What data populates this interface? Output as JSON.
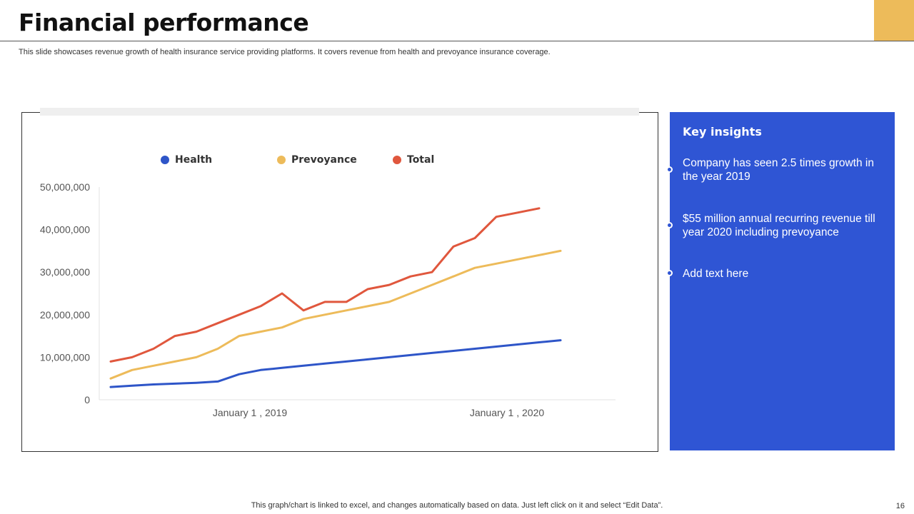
{
  "slide": {
    "title": "Financial performance",
    "subtitle": "This slide showcases revenue growth of  health insurance service providing platforms. It covers revenue from health and prevoyance insurance coverage.",
    "footnote": "This graph/chart is linked to excel,  and changes automatically based on data. Just left click on it and select “Edit Data”.",
    "page_number": "16",
    "accent_color": "#EDBB5A"
  },
  "insights": {
    "title": "Key insights",
    "background": "#2F55D4",
    "items": [
      "Company has seen 2.5 times growth in the year 2019",
      "$55 million annual  recurring revenue till year 2020 including prevoyance",
      "Add text here"
    ]
  },
  "chart_data": {
    "type": "line",
    "x": [
      "2018-07-01",
      "2018-08-01",
      "2018-09-01",
      "2018-10-01",
      "2018-11-01",
      "2018-12-01",
      "2019-01-01",
      "2019-02-01",
      "2019-03-01",
      "2019-04-01",
      "2019-05-01",
      "2019-06-01",
      "2019-07-01",
      "2019-08-01",
      "2019-09-01",
      "2019-10-01",
      "2019-11-01",
      "2019-12-01",
      "2020-01-01",
      "2020-02-01",
      "2020-03-01",
      "2020-04-01",
      "2020-05-01"
    ],
    "x_tick_labels": [
      "January 1 , 2019",
      "January 1 , 2020"
    ],
    "x_tick_dates": [
      "2019-01-01",
      "2020-01-01"
    ],
    "y_tick_labels": [
      "0",
      "10,000,000",
      "20,000,000",
      "30,000,000",
      "40,000,000",
      "50,000,000"
    ],
    "ylim": [
      0,
      50000000
    ],
    "grid": false,
    "legend_position": "top",
    "series": [
      {
        "name": "Health",
        "color": "#2E55C8",
        "values": [
          3000000,
          3300000,
          3600000,
          3800000,
          4000000,
          4300000,
          6000000,
          7000000,
          7500000,
          8000000,
          8500000,
          9000000,
          9500000,
          10000000,
          10500000,
          11000000,
          11500000,
          12000000,
          12500000,
          13000000,
          13500000,
          14000000,
          null
        ]
      },
      {
        "name": "Prevoyance",
        "color": "#EDBB5A",
        "values": [
          5000000,
          7000000,
          8000000,
          9000000,
          10000000,
          12000000,
          15000000,
          16000000,
          17000000,
          19000000,
          20000000,
          21000000,
          22000000,
          23000000,
          25000000,
          27000000,
          29000000,
          31000000,
          32000000,
          33000000,
          34000000,
          35000000,
          null
        ]
      },
      {
        "name": "Total",
        "color": "#E0573D",
        "values": [
          9000000,
          10000000,
          12000000,
          15000000,
          16000000,
          18000000,
          20000000,
          22000000,
          25000000,
          21000000,
          23000000,
          23000000,
          26000000,
          27000000,
          29000000,
          30000000,
          36000000,
          38000000,
          43000000,
          44000000,
          45000000,
          null,
          null
        ]
      }
    ]
  }
}
